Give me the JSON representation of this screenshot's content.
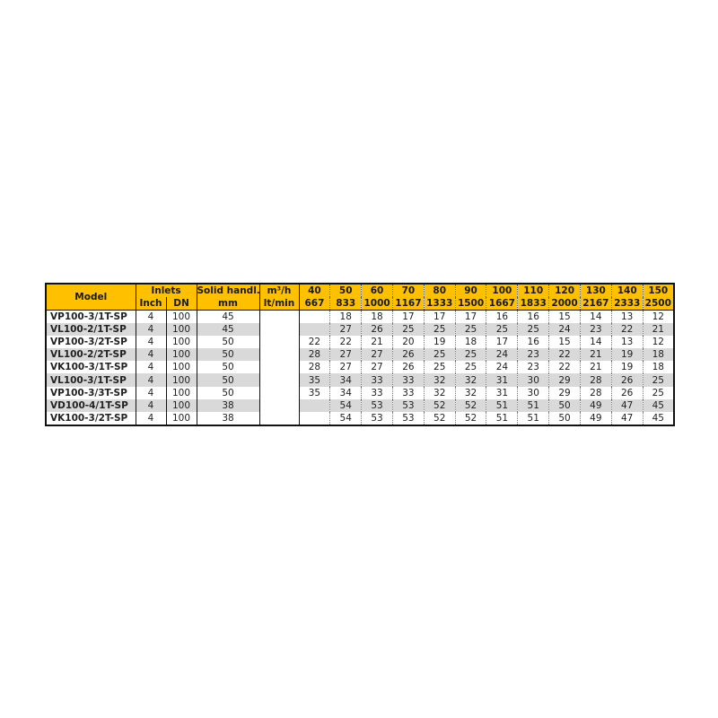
{
  "headers": {
    "model": "Model",
    "inlets": "Inlets",
    "inch": "Inch",
    "dn": "DN",
    "solid": "Solid handl.",
    "solid_unit": "mm",
    "flow_unit_1": "m³/h",
    "flow_unit_2": "lt/min",
    "flow_m3h": [
      "40",
      "50",
      "60",
      "70",
      "80",
      "90",
      "100",
      "110",
      "120",
      "130",
      "140",
      "150"
    ],
    "flow_ltmin": [
      "667",
      "833",
      "1000",
      "1167",
      "1333",
      "1500",
      "1667",
      "1833",
      "2000",
      "2167",
      "2333",
      "2500"
    ]
  },
  "rows": [
    {
      "model": "VP100-3/1T-SP",
      "inch": "4",
      "dn": "100",
      "solid": "45",
      "values": [
        "",
        "18",
        "18",
        "17",
        "17",
        "17",
        "16",
        "16",
        "15",
        "14",
        "13",
        "12"
      ]
    },
    {
      "model": "VL100-2/1T-SP",
      "inch": "4",
      "dn": "100",
      "solid": "45",
      "values": [
        "",
        "27",
        "26",
        "25",
        "25",
        "25",
        "25",
        "25",
        "24",
        "23",
        "22",
        "21"
      ]
    },
    {
      "model": "VP100-3/2T-SP",
      "inch": "4",
      "dn": "100",
      "solid": "50",
      "values": [
        "22",
        "22",
        "21",
        "20",
        "19",
        "18",
        "17",
        "16",
        "15",
        "14",
        "13",
        "12"
      ]
    },
    {
      "model": "VL100-2/2T-SP",
      "inch": "4",
      "dn": "100",
      "solid": "50",
      "values": [
        "28",
        "27",
        "27",
        "26",
        "25",
        "25",
        "24",
        "23",
        "22",
        "21",
        "19",
        "18"
      ]
    },
    {
      "model": "VK100-3/1T-SP",
      "inch": "4",
      "dn": "100",
      "solid": "50",
      "values": [
        "28",
        "27",
        "27",
        "26",
        "25",
        "25",
        "24",
        "23",
        "22",
        "21",
        "19",
        "18"
      ]
    },
    {
      "model": "VL100-3/1T-SP",
      "inch": "4",
      "dn": "100",
      "solid": "50",
      "values": [
        "35",
        "34",
        "33",
        "33",
        "32",
        "32",
        "31",
        "30",
        "29",
        "28",
        "26",
        "25"
      ]
    },
    {
      "model": "VP100-3/3T-SP",
      "inch": "4",
      "dn": "100",
      "solid": "50",
      "values": [
        "35",
        "34",
        "33",
        "33",
        "32",
        "32",
        "31",
        "30",
        "29",
        "28",
        "26",
        "25"
      ]
    },
    {
      "model": "VD100-4/1T-SP",
      "inch": "4",
      "dn": "100",
      "solid": "38",
      "values": [
        "",
        "54",
        "53",
        "53",
        "52",
        "52",
        "51",
        "51",
        "50",
        "49",
        "47",
        "45"
      ]
    },
    {
      "model": "VK100-3/2T-SP",
      "inch": "4",
      "dn": "100",
      "solid": "38",
      "values": [
        "",
        "54",
        "53",
        "53",
        "52",
        "52",
        "51",
        "51",
        "50",
        "49",
        "47",
        "45"
      ]
    }
  ],
  "colors": {
    "header": "#ffc000",
    "stripe": "#d9d9d9"
  }
}
